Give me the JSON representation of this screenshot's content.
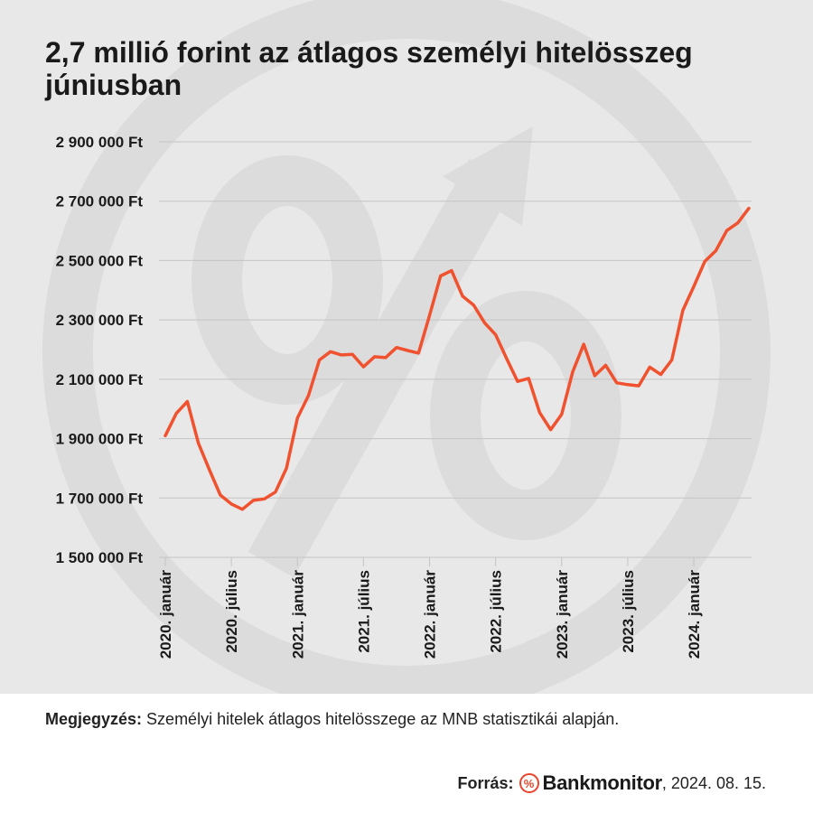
{
  "title": "2,7 millió forint az átlagos személyi hitelösszeg júniusban",
  "chart_data": {
    "type": "line",
    "x": [
      "2020-01",
      "2020-02",
      "2020-03",
      "2020-04",
      "2020-05",
      "2020-06",
      "2020-07",
      "2020-08",
      "2020-09",
      "2020-10",
      "2020-11",
      "2020-12",
      "2021-01",
      "2021-02",
      "2021-03",
      "2021-04",
      "2021-05",
      "2021-06",
      "2021-07",
      "2021-08",
      "2021-09",
      "2021-10",
      "2021-11",
      "2021-12",
      "2022-01",
      "2022-02",
      "2022-03",
      "2022-04",
      "2022-05",
      "2022-06",
      "2022-07",
      "2022-08",
      "2022-09",
      "2022-10",
      "2022-11",
      "2022-12",
      "2023-01",
      "2023-02",
      "2023-03",
      "2023-04",
      "2023-05",
      "2023-06",
      "2023-07",
      "2023-08",
      "2023-09",
      "2023-10",
      "2023-11",
      "2023-12",
      "2024-01",
      "2024-02",
      "2024-03",
      "2024-04",
      "2024-05",
      "2024-06"
    ],
    "series": [
      {
        "values": [
          1910000,
          1985000,
          2025000,
          1885000,
          1795000,
          1710000,
          1680000,
          1662000,
          1692000,
          1697000,
          1720000,
          1800000,
          1970000,
          2045000,
          2165000,
          2193000,
          2182000,
          2184000,
          2142000,
          2176000,
          2173000,
          2207000,
          2197000,
          2188000,
          2315000,
          2448000,
          2466000,
          2380000,
          2350000,
          2290000,
          2250000,
          2170000,
          2093000,
          2103000,
          1988000,
          1930000,
          1982000,
          2125000,
          2218000,
          2112000,
          2147000,
          2088000,
          2082000,
          2078000,
          2141000,
          2116000,
          2165000,
          2332000,
          2413000,
          2497000,
          2533000,
          2601000,
          2627000,
          2676000
        ],
        "color": "#f0512e"
      }
    ],
    "ylim": [
      1500000,
      2900000
    ],
    "y_ticks": [
      1500000,
      1700000,
      1900000,
      2100000,
      2300000,
      2500000,
      2700000,
      2900000
    ],
    "y_tick_labels": [
      "1 500 000 Ft",
      "1 700 000 Ft",
      "1 900 000 Ft",
      "2 100 000 Ft",
      "2 300 000 Ft",
      "2 500 000 Ft",
      "2 700 000 Ft",
      "2 900 000 Ft"
    ],
    "x_ticks": [
      "2020-01",
      "2020-07",
      "2021-01",
      "2021-07",
      "2022-01",
      "2022-07",
      "2023-01",
      "2023-07",
      "2024-01"
    ],
    "x_tick_labels": [
      "2020. január",
      "2020. július",
      "2021. január",
      "2021. július",
      "2022. január",
      "2022. július",
      "2023. január",
      "2023. július",
      "2024. január"
    ],
    "grid": "horizontal",
    "legend": "none"
  },
  "footer": {
    "note_label": "Megjegyzés:",
    "note_text": " Személyi hitelek átlagos hitelösszege az MNB statisztikái alapján.",
    "source_label": "Forrás:",
    "brand_mark": "%",
    "brand": "Bankmonitor",
    "date": ", 2024. 08. 15."
  },
  "colors": {
    "background": "#e8e8e8",
    "line": "#f0512e",
    "grid": "#c4c4c4",
    "watermark": "#dcdcdc",
    "text": "#1a1a1a",
    "brand_accent": "#e8452c"
  },
  "watermark_icon": "percent-arrow-watermark-icon"
}
